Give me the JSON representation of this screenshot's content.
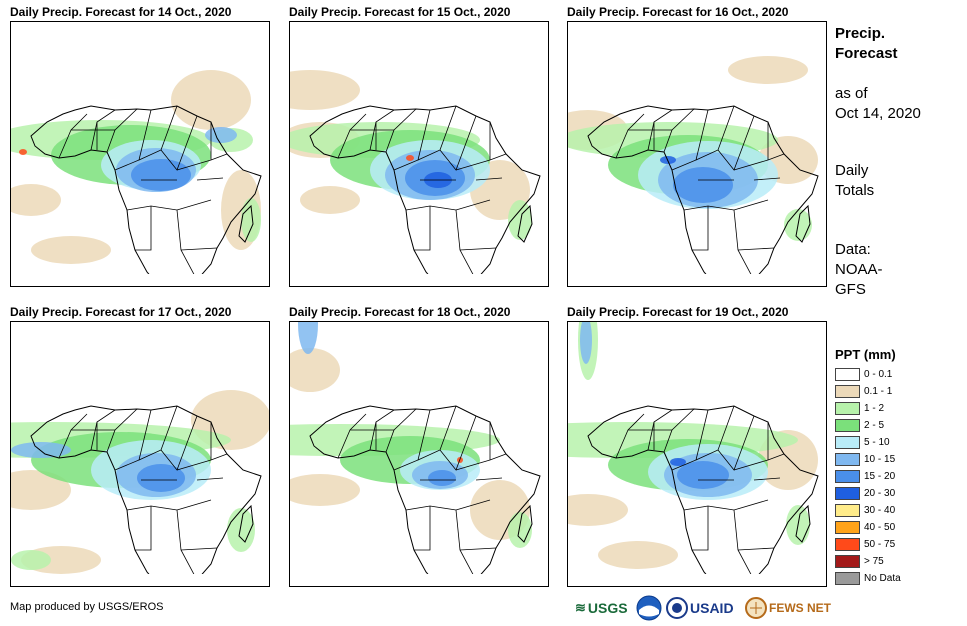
{
  "panels": [
    {
      "title": "Daily Precip. Forecast for 14 Oct., 2020"
    },
    {
      "title": "Daily Precip. Forecast for 15 Oct., 2020"
    },
    {
      "title": "Daily Precip. Forecast for 16 Oct., 2020"
    },
    {
      "title": "Daily Precip. Forecast for 17 Oct., 2020"
    },
    {
      "title": "Daily Precip. Forecast for 18 Oct., 2020"
    },
    {
      "title": "Daily Precip. Forecast for 19 Oct., 2020"
    }
  ],
  "sidebar": {
    "heading_line1": "Precip.",
    "heading_line2": "Forecast",
    "asof_line1": "as of",
    "asof_line2": "Oct 14, 2020",
    "totals_line1": "Daily",
    "totals_line2": "Totals",
    "data_line1": "Data:",
    "data_line2": "NOAA-",
    "data_line3": "GFS"
  },
  "legend": {
    "title": "PPT (mm)",
    "items": [
      {
        "label": "0 - 0.1",
        "color": "#ffffff"
      },
      {
        "label": "0.1 - 1",
        "color": "#ecd9b9"
      },
      {
        "label": "1 - 2",
        "color": "#b7f2ab"
      },
      {
        "label": "2 - 5",
        "color": "#7be07b"
      },
      {
        "label": "5 - 10",
        "color": "#b9ecf8"
      },
      {
        "label": "10 - 15",
        "color": "#7fb8f0"
      },
      {
        "label": "15 - 20",
        "color": "#4a8fea"
      },
      {
        "label": "20 - 30",
        "color": "#1f5fe0"
      },
      {
        "label": "30 - 40",
        "color": "#ffec8a"
      },
      {
        "label": "40 - 50",
        "color": "#ffa31a"
      },
      {
        "label": "50 - 75",
        "color": "#ff4a1a"
      },
      {
        "label": "> 75",
        "color": "#a31a1a"
      },
      {
        "label": "No Data",
        "color": "#9a9a9a"
      }
    ]
  },
  "footer": {
    "credit": "Map produced by USGS/EROS",
    "logos": [
      "USGS",
      "NOAA",
      "USAID",
      "FEWS NET"
    ]
  }
}
